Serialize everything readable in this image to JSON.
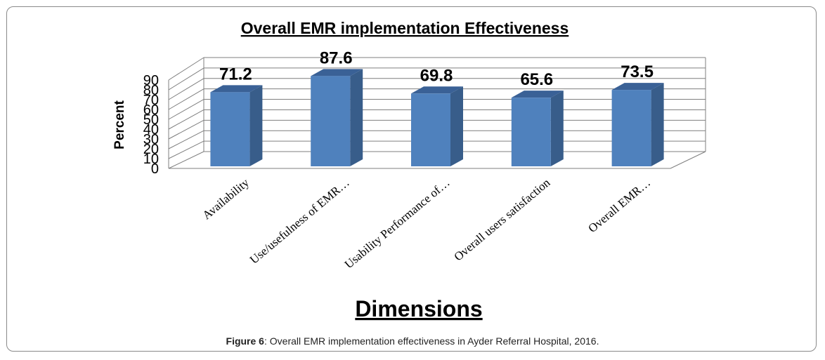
{
  "chart_data": {
    "type": "bar",
    "title": "Overall EMR implementation Effectiveness",
    "xlabel": "Dimensions",
    "ylabel": "Percent",
    "categories": [
      "Availability",
      "Use/usefulness of EMR…",
      "Usability Performance of…",
      "Overall users satisfaction",
      "Overall EMR…"
    ],
    "values": [
      71.2,
      87.6,
      69.8,
      65.6,
      73.5
    ],
    "data_labels": [
      "71.2",
      "87.6",
      "69.8",
      "65.6",
      "73.5"
    ],
    "ylim": [
      0,
      90
    ],
    "yticks": [
      0,
      10,
      20,
      30,
      40,
      50,
      60,
      70,
      80,
      90
    ],
    "grid": true,
    "legend": "none",
    "colors": {
      "bar_front": "#4f81bd",
      "bar_side": "#385d8a",
      "bar_top": "#3a6196",
      "grid": "#7f7f7f"
    }
  },
  "caption": {
    "label": "Figure 6",
    "text": ": Overall EMR implementation effectiveness in Ayder Referral Hospital, 2016."
  }
}
